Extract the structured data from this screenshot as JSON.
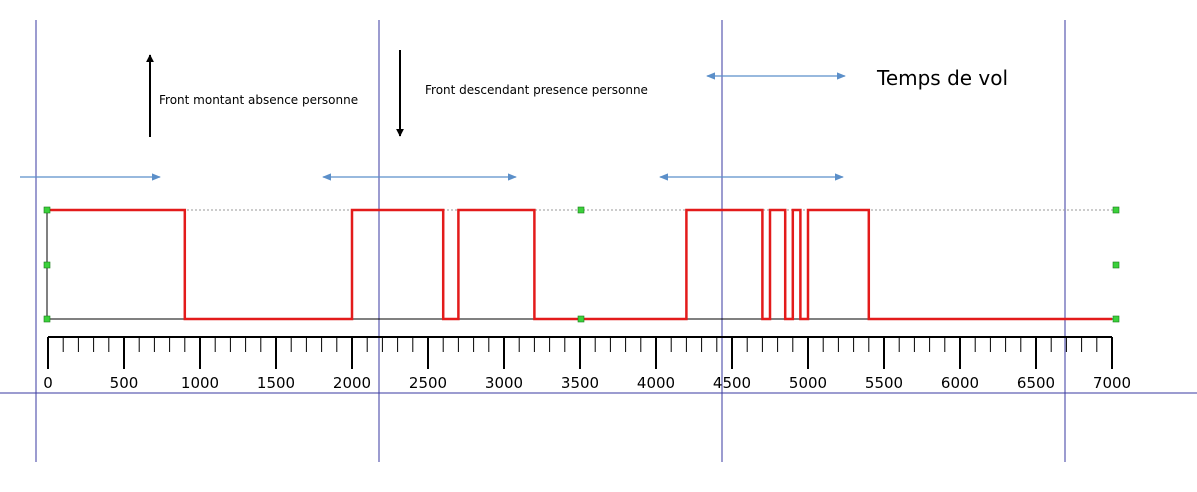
{
  "annotations": {
    "rising_edge": "Front montant absence personne",
    "falling_edge": "Front descendant presence personne",
    "flight_time": "Temps de vol"
  },
  "colors": {
    "signal": "#e31b1b",
    "blue_arrow": "#5b8fc9",
    "vertical_line": "#3a3aa0",
    "handle": "#3bd13b"
  },
  "chart_data": {
    "type": "line",
    "signal_transitions_x": [
      0,
      900,
      2000,
      2600,
      2700,
      3200,
      4200,
      4700,
      4750,
      4850,
      4900,
      4950,
      5000,
      5400,
      7000
    ],
    "signal_levels": [
      1,
      0,
      1,
      0,
      1,
      0,
      1,
      0,
      1,
      0,
      1,
      0,
      1,
      0
    ],
    "xlim": [
      0,
      7000
    ],
    "x_ticks": [
      0,
      500,
      1000,
      1500,
      2000,
      2500,
      3000,
      3500,
      4000,
      4500,
      5000,
      5500,
      6000,
      6500,
      7000
    ],
    "tick_labels": [
      "0",
      "500",
      "1000",
      "1500",
      "2000",
      "2500",
      "3000",
      "3500",
      "4000",
      "4500",
      "5000",
      "5500",
      "6000",
      "6500",
      "7000"
    ]
  }
}
